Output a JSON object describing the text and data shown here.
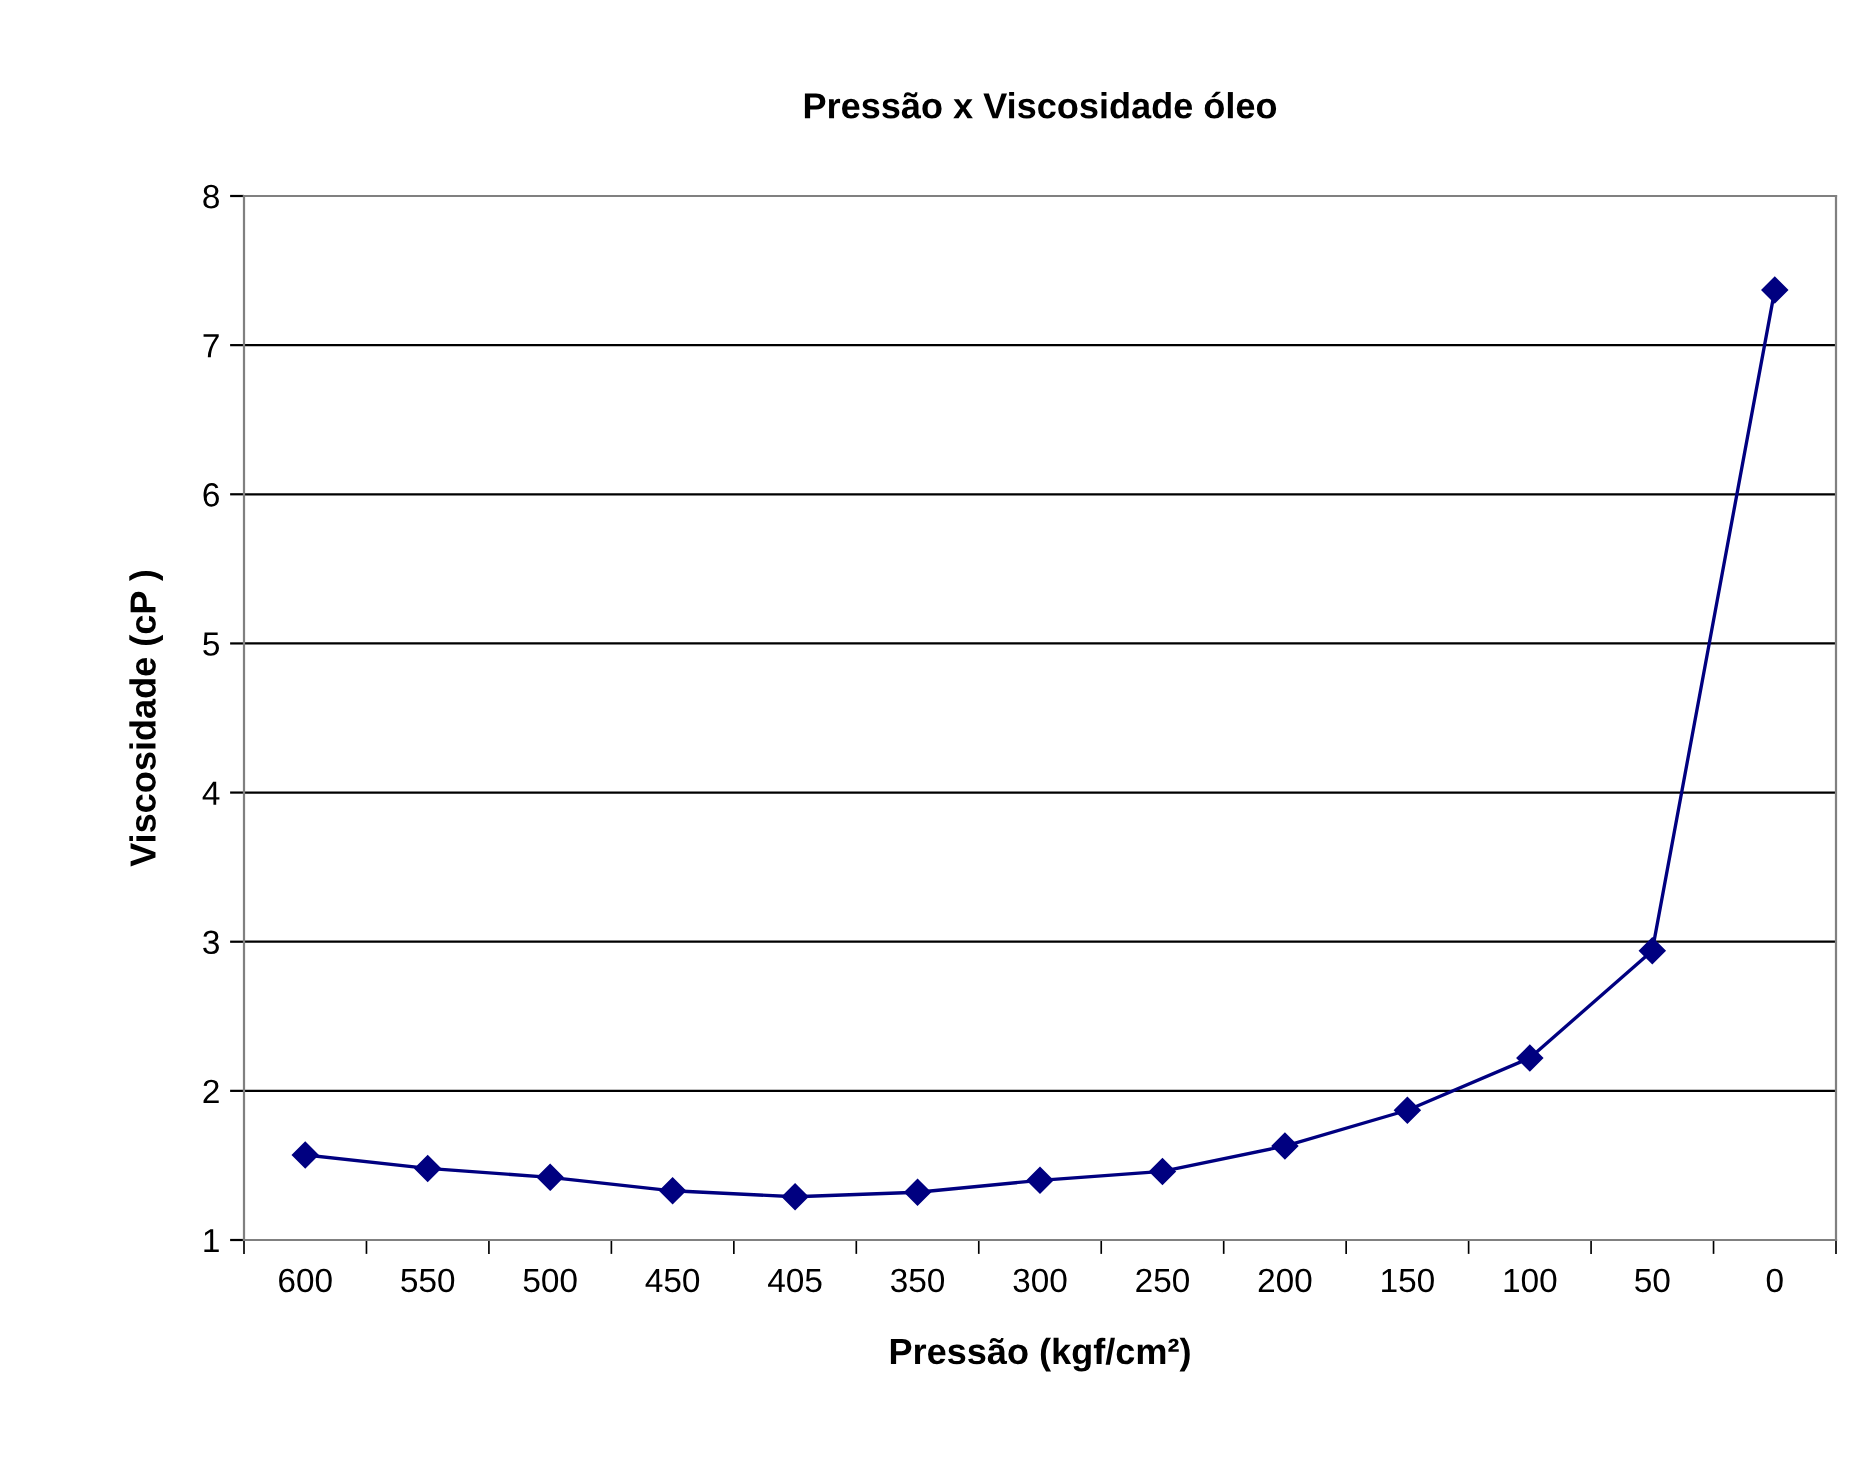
{
  "chart_data": {
    "type": "line",
    "title": "Pressão x Viscosidade óleo",
    "xlabel": "Pressão (kgf/cm²)",
    "ylabel": "Viscosidade (cP )",
    "categories": [
      "600",
      "550",
      "500",
      "450",
      "405",
      "350",
      "300",
      "250",
      "200",
      "150",
      "100",
      "50",
      "0"
    ],
    "series": [
      {
        "color": "#000080",
        "values": [
          1.57,
          1.48,
          1.42,
          1.33,
          1.29,
          1.32,
          1.4,
          1.46,
          1.63,
          1.87,
          2.22,
          2.94,
          7.37
        ]
      }
    ],
    "ylim": [
      1,
      8
    ],
    "yticks": [
      1,
      2,
      3,
      4,
      5,
      6,
      7,
      8
    ],
    "grid": "y",
    "marker": "diamond",
    "line_style": "solid"
  }
}
